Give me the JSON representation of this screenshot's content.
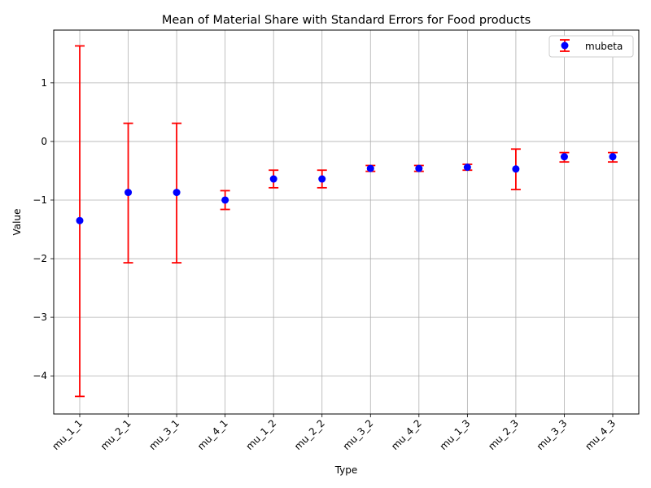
{
  "chart_data": {
    "type": "scatter",
    "title": "Mean of Material Share with Standard Errors for Food products",
    "xlabel": "Type",
    "ylabel": "Value",
    "categories": [
      "mu_1_1",
      "mu_2_1",
      "mu_3_1",
      "mu_4_1",
      "mu_1_2",
      "mu_2_2",
      "mu_3_2",
      "mu_4_2",
      "mu_1_3",
      "mu_2_3",
      "mu_3_3",
      "mu_4_3"
    ],
    "series": [
      {
        "name": "mubeta",
        "values": [
          -1.35,
          -0.87,
          -0.87,
          -1.0,
          -0.64,
          -0.64,
          -0.46,
          -0.46,
          -0.44,
          -0.47,
          -0.26,
          -0.26
        ],
        "error_lower": [
          -4.35,
          -2.07,
          -2.07,
          -1.16,
          -0.79,
          -0.79,
          -0.51,
          -0.51,
          -0.49,
          -0.82,
          -0.35,
          -0.35
        ],
        "error_upper": [
          1.63,
          0.31,
          0.31,
          -0.84,
          -0.49,
          -0.49,
          -0.41,
          -0.41,
          -0.39,
          -0.13,
          -0.19,
          -0.19
        ],
        "marker_color": "#0000ff",
        "error_color": "#ff0000"
      }
    ],
    "yticks": [
      -4,
      -3,
      -2,
      -1,
      0,
      1
    ],
    "ylim": [
      -4.65,
      1.9
    ],
    "grid": true,
    "legend_position": "top-right"
  }
}
